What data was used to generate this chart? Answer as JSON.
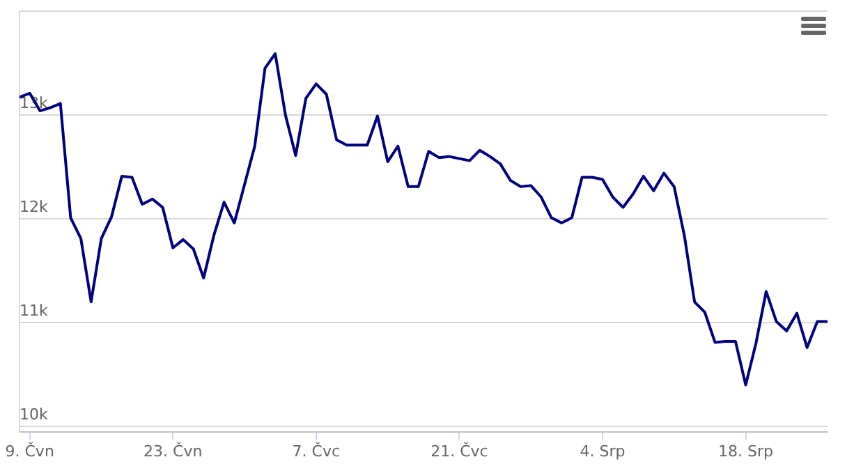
{
  "chart_data": {
    "type": "line",
    "x": [
      "--06-08",
      "--06-09",
      "--06-10",
      "--06-11",
      "--06-12",
      "--06-13",
      "--06-14",
      "--06-15",
      "--06-16",
      "--06-17",
      "--06-18",
      "--06-19",
      "--06-20",
      "--06-21",
      "--06-22",
      "--06-23",
      "--06-24",
      "--06-25",
      "--06-26",
      "--06-27",
      "--06-28",
      "--06-29",
      "--06-30",
      "--07-01",
      "--07-02",
      "--07-03",
      "--07-04",
      "--07-05",
      "--07-06",
      "--07-07",
      "--07-08",
      "--07-09",
      "--07-10",
      "--07-11",
      "--07-12",
      "--07-13",
      "--07-14",
      "--07-15",
      "--07-16",
      "--07-17",
      "--07-18",
      "--07-19",
      "--07-20",
      "--07-21",
      "--07-22",
      "--07-23",
      "--07-24",
      "--07-25",
      "--07-26",
      "--07-27",
      "--07-28",
      "--07-29",
      "--07-30",
      "--07-31",
      "--08-01",
      "--08-02",
      "--08-03",
      "--08-04",
      "--08-05",
      "--08-06",
      "--08-07",
      "--08-08",
      "--08-09",
      "--08-10",
      "--08-11",
      "--08-12",
      "--08-13",
      "--08-14",
      "--08-15",
      "--08-16",
      "--08-17",
      "--08-18",
      "--08-19",
      "--08-20",
      "--08-21",
      "--08-22",
      "--08-23",
      "--08-24",
      "--08-25",
      "--08-26"
    ],
    "series": [
      {
        "color": "#000080",
        "values": [
          13170,
          13210,
          13040,
          13070,
          13110,
          12010,
          11810,
          11200,
          11810,
          12020,
          12410,
          12400,
          12140,
          12190,
          12110,
          11720,
          11800,
          11710,
          11430,
          11840,
          12160,
          11960,
          12330,
          12700,
          13450,
          13590,
          13000,
          12610,
          13160,
          13300,
          13200,
          12760,
          12710,
          12710,
          12710,
          12990,
          12550,
          12700,
          12310,
          12310,
          12650,
          12590,
          12600,
          12580,
          12560,
          12660,
          12600,
          12530,
          12370,
          12310,
          12320,
          12210,
          12010,
          11960,
          12010,
          12400,
          12400,
          12380,
          12210,
          12110,
          12240,
          12410,
          12270,
          12440,
          12310,
          11840,
          11200,
          11100,
          10810,
          10820,
          10820,
          10400,
          10800,
          11300,
          11010,
          10920,
          11090,
          10760,
          11010,
          11010
        ]
      }
    ],
    "xlim": [
      "--06-08",
      "--08-26"
    ],
    "xticks": [
      {
        "value": "--06-09",
        "label": "9. Čvn"
      },
      {
        "value": "--06-23",
        "label": "23. Čvn"
      },
      {
        "value": "--07-07",
        "label": "7. Čvc"
      },
      {
        "value": "--07-21",
        "label": "21. Čvc"
      },
      {
        "value": "--08-04",
        "label": "4. Srp"
      },
      {
        "value": "--08-18",
        "label": "18. Srp"
      }
    ],
    "ylim": [
      9950,
      14000
    ],
    "yticks": [
      {
        "value": 10000,
        "label": "10k"
      },
      {
        "value": 11000,
        "label": "11k"
      },
      {
        "value": 12000,
        "label": "12k"
      },
      {
        "value": 13000,
        "label": "13k"
      },
      {
        "value": 14000,
        "label": null
      }
    ],
    "grid": "y",
    "legend": false,
    "marker": "none",
    "line_style": "solid"
  }
}
